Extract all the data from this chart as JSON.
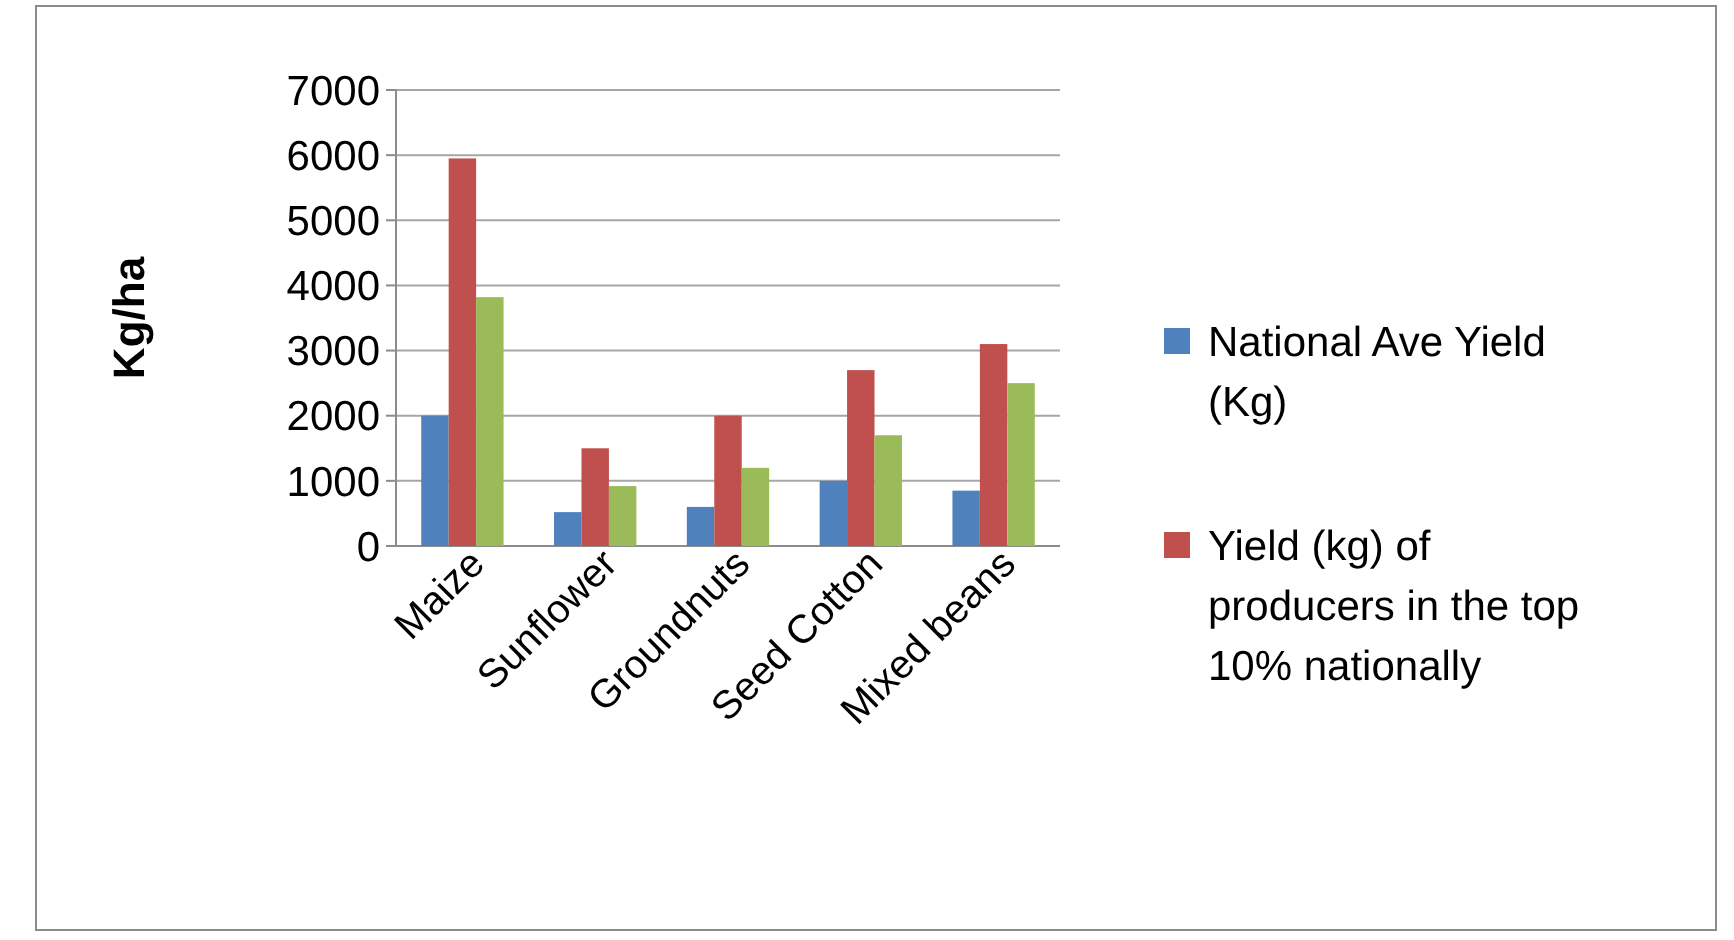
{
  "chart_data": {
    "type": "bar",
    "ylabel": "Kg/ha",
    "categories": [
      "Maize",
      "Sunflower",
      "Groundnuts",
      "Seed Cotton",
      "Mixed beans"
    ],
    "series": [
      {
        "name": "National Ave Yield (Kg)",
        "color": "#4f81bd",
        "values": [
          2000,
          520,
          600,
          1000,
          850
        ]
      },
      {
        "name": "Yield (kg) of producers in the top 10% nationally",
        "color": "#c0504d",
        "values": [
          5950,
          1500,
          2000,
          2700,
          3100
        ]
      },
      {
        "color": "#9bbb59",
        "values": [
          3820,
          920,
          1200,
          1700,
          2500
        ]
      }
    ],
    "ylim": [
      0,
      7000
    ],
    "yticks": [
      0,
      1000,
      2000,
      3000,
      4000,
      5000,
      6000,
      7000
    ],
    "grid": "y",
    "legend": "right"
  }
}
